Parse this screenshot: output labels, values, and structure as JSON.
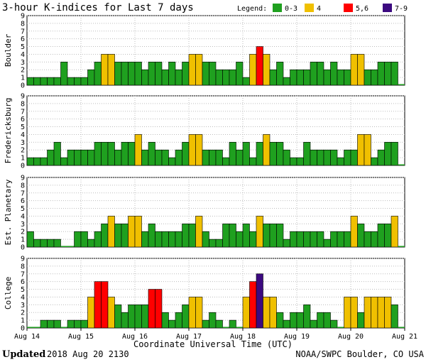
{
  "chart_data": {
    "type": "bar",
    "title": "3-hour K-indices for Last 7 days",
    "legend": {
      "title": "Legend:",
      "entries": [
        {
          "label": "0-3",
          "color": "#1fa01f"
        },
        {
          "label": "4",
          "color": "#f0c000"
        },
        {
          "label": "5,6",
          "color": "#ff0000"
        },
        {
          "label": "7-9",
          "color": "#3c0a80"
        }
      ]
    },
    "ylim": [
      0,
      9
    ],
    "yticks": [
      "0",
      "1",
      "2",
      "3",
      "4",
      "5",
      "6",
      "7",
      "8",
      "9"
    ],
    "x_tick_labels": [
      "Aug 14",
      "Aug 15",
      "Aug 16",
      "Aug 17",
      "Aug 18",
      "Aug 19",
      "Aug 20",
      "Aug 21"
    ],
    "xlabel": "Coordinate Universal Time (UTC)",
    "series": [
      {
        "name": "Boulder",
        "values": [
          1,
          1,
          1,
          1,
          1,
          3,
          1,
          1,
          1,
          2,
          3,
          4,
          4,
          3,
          3,
          3,
          3,
          2,
          3,
          3,
          2,
          3,
          2,
          3,
          4,
          4,
          3,
          3,
          2,
          2,
          2,
          3,
          1,
          4,
          5,
          4,
          2,
          3,
          1,
          2,
          2,
          2,
          3,
          3,
          2,
          3,
          2,
          2,
          4,
          4,
          2,
          2,
          3,
          3,
          3,
          0
        ]
      },
      {
        "name": "Fredericksburg",
        "values": [
          1,
          1,
          1,
          2,
          3,
          1,
          2,
          2,
          2,
          2,
          3,
          3,
          3,
          2,
          3,
          3,
          4,
          2,
          3,
          2,
          2,
          1,
          2,
          3,
          4,
          4,
          2,
          2,
          2,
          1,
          3,
          2,
          3,
          1,
          3,
          4,
          3,
          3,
          2,
          1,
          1,
          3,
          2,
          2,
          2,
          2,
          1,
          2,
          2,
          4,
          4,
          1,
          2,
          3,
          3,
          0
        ]
      },
      {
        "name": "Est. Planetary",
        "values": [
          2,
          1,
          1,
          1,
          1,
          0,
          0,
          2,
          2,
          1,
          2,
          3,
          4,
          3,
          3,
          4,
          4,
          2,
          3,
          2,
          2,
          2,
          2,
          3,
          3,
          4,
          2,
          1,
          1,
          3,
          3,
          2,
          3,
          2,
          4,
          3,
          3,
          3,
          1,
          2,
          2,
          2,
          2,
          2,
          1,
          2,
          2,
          2,
          4,
          3,
          2,
          2,
          3,
          3,
          4,
          0
        ]
      },
      {
        "name": "College",
        "values": [
          0,
          0,
          1,
          1,
          1,
          0,
          1,
          1,
          1,
          4,
          6,
          6,
          4,
          3,
          2,
          3,
          3,
          3,
          5,
          5,
          2,
          1,
          2,
          3,
          4,
          4,
          1,
          2,
          1,
          0,
          1,
          0,
          4,
          6,
          7,
          4,
          4,
          2,
          1,
          2,
          2,
          3,
          1,
          2,
          2,
          1,
          0,
          4,
          4,
          2,
          4,
          4,
          4,
          4,
          3,
          0
        ]
      }
    ],
    "footer": {
      "updated_label": "Updated",
      "updated_value": "2018 Aug 20 2130",
      "credit": "NOAA/SWPC Boulder, CO USA"
    }
  }
}
